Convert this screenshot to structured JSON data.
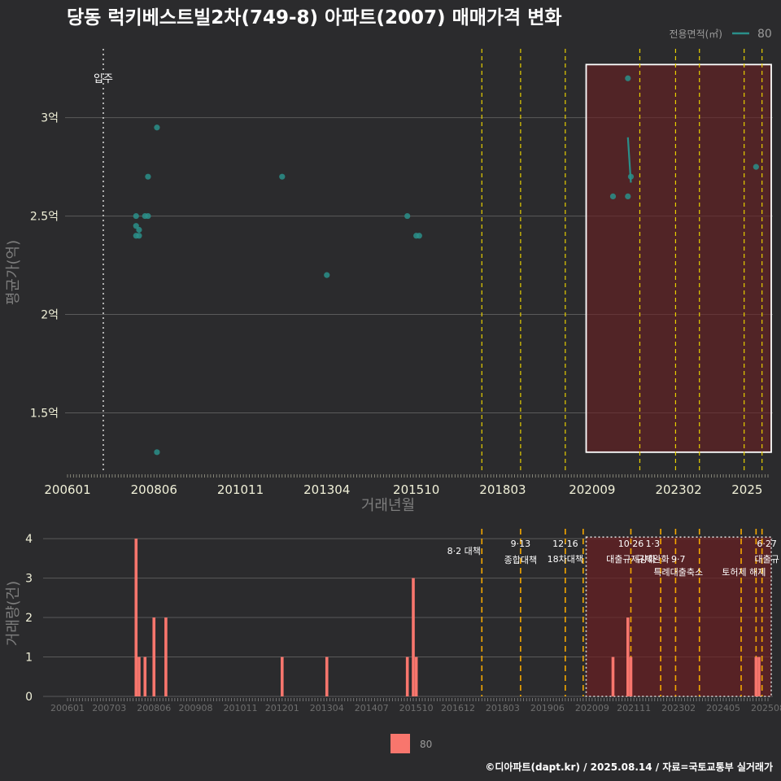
{
  "chart_data": [
    {
      "type": "scatter",
      "title": "당동 럭키베스트빌2차(749-8) 아파트(2007) 매매가격 변화",
      "xlabel": "거래년월",
      "ylabel": "평균가(억)",
      "legend": {
        "title": "전용면적(㎡)",
        "entries": [
          "80"
        ],
        "placement": "top-right"
      },
      "x_ticks": [
        "200601",
        "200806",
        "201011",
        "201304",
        "201510",
        "201803",
        "202009",
        "202302",
        "2025"
      ],
      "x_range": [
        "2006-01",
        "2025-08"
      ],
      "y_ticks": [
        "1.5억",
        "2억",
        "2.5억",
        "3억"
      ],
      "y_range": [
        1.2,
        3.35
      ],
      "series": [
        {
          "name": "80",
          "color": "#2a8f8a",
          "points": [
            {
              "x": "2007-12",
              "y": 2.45
            },
            {
              "x": "2007-12",
              "y": 2.5
            },
            {
              "x": "2007-12",
              "y": 2.4
            },
            {
              "x": "2008-01",
              "y": 2.43
            },
            {
              "x": "2008-01",
              "y": 2.4
            },
            {
              "x": "2008-03",
              "y": 2.5
            },
            {
              "x": "2008-04",
              "y": 2.7
            },
            {
              "x": "2008-04",
              "y": 2.5
            },
            {
              "x": "2008-07",
              "y": 2.95
            },
            {
              "x": "2008-07",
              "y": 1.3
            },
            {
              "x": "2012-01",
              "y": 2.7
            },
            {
              "x": "2013-04",
              "y": 2.2
            },
            {
              "x": "2015-07",
              "y": 2.5
            },
            {
              "x": "2015-10",
              "y": 2.4
            },
            {
              "x": "2015-11",
              "y": 2.4
            },
            {
              "x": "2021-04",
              "y": 2.6
            },
            {
              "x": "2021-09",
              "y": 3.2
            },
            {
              "x": "2021-09",
              "y": 2.6
            },
            {
              "x": "2021-10",
              "y": 2.7
            },
            {
              "x": "2025-04",
              "y": 2.75
            }
          ],
          "line": [
            {
              "x": "2021-09",
              "y": 2.9
            },
            {
              "x": "2021-10",
              "y": 2.67
            }
          ]
        }
      ],
      "annotations": [
        {
          "x": "2007-01",
          "label": "입주",
          "style": "dotted"
        }
      ],
      "policy_lines": [
        "2017-08",
        "2018-09",
        "2019-12",
        "2022-01",
        "2023-01",
        "2023-09",
        "2024-12",
        "2025-06"
      ],
      "highlight": {
        "x_range": [
          "2020-07",
          "2025-08"
        ],
        "y_range": [
          1.3,
          3.27
        ]
      }
    },
    {
      "type": "bar",
      "title": "",
      "xlabel": "",
      "ylabel": "거래량(건)",
      "legend": {
        "entries": [
          "80"
        ],
        "placement": "bottom"
      },
      "x_ticks": [
        "200601",
        "200703",
        "200806",
        "200908",
        "201011",
        "201201",
        "201304",
        "201407",
        "201510",
        "201612",
        "201803",
        "201906",
        "202009",
        "202111",
        "202302",
        "202405",
        "202508"
      ],
      "y_ticks": [
        "0",
        "1",
        "2",
        "3",
        "4"
      ],
      "y_range": [
        0,
        4.25
      ],
      "series": [
        {
          "name": "80",
          "color": "#f8766d",
          "bars": [
            {
              "x": "2007-12",
              "y": 4
            },
            {
              "x": "2008-01",
              "y": 1
            },
            {
              "x": "2008-03",
              "y": 1
            },
            {
              "x": "2008-06",
              "y": 2
            },
            {
              "x": "2008-10",
              "y": 2
            },
            {
              "x": "2012-01",
              "y": 1
            },
            {
              "x": "2013-04",
              "y": 1
            },
            {
              "x": "2015-07",
              "y": 1
            },
            {
              "x": "2015-09",
              "y": 3
            },
            {
              "x": "2015-10",
              "y": 1
            },
            {
              "x": "2021-04",
              "y": 1
            },
            {
              "x": "2021-09",
              "y": 2
            },
            {
              "x": "2021-10",
              "y": 1
            },
            {
              "x": "2025-04",
              "y": 1
            },
            {
              "x": "2025-05",
              "y": 1
            }
          ]
        }
      ],
      "policy_lines": [
        {
          "x": "2017-08",
          "label": "8·2 대책",
          "color": "#f5a800"
        },
        {
          "x": "2018-09",
          "label": "9·13\n종합대책",
          "color": "#f5a800"
        },
        {
          "x": "2019-12",
          "label": "12·16\n18차대책",
          "color": "#f5a800"
        },
        {
          "x": "2020-06",
          "label": "",
          "color": "#f5a800"
        },
        {
          "x": "2021-10",
          "label": "10·26\n대출규제강화",
          "color": "#f5a800"
        },
        {
          "x": "2022-08",
          "label": "",
          "color": "#f5a800"
        },
        {
          "x": "2023-01",
          "label": "1·3\n규제완화",
          "color": "#f5a800"
        },
        {
          "x": "2023-09",
          "label": "9·7\n특례대출축소",
          "color": "#f5a800"
        },
        {
          "x": "2024-11",
          "label": "",
          "color": "#f5a800"
        },
        {
          "x": "2025-04",
          "label": "토허제 해제",
          "color": "#f5a800"
        },
        {
          "x": "2025-06",
          "label": "6·27\n대출규",
          "color": "#f5a800"
        }
      ],
      "highlight": {
        "x_range": [
          "2020-07",
          "2025-08"
        ]
      }
    }
  ],
  "credit": "©디아파트(dapt.kr) / 2025.08.14 / 자료=국토교통부 실거래가",
  "colors": {
    "background": "#2b2b2d",
    "point": "#2a8f8a",
    "bar": "#f8766d",
    "highlight": "#6b1f22",
    "policy_top": "#e8d000",
    "policy_bottom": "#f5a800"
  }
}
